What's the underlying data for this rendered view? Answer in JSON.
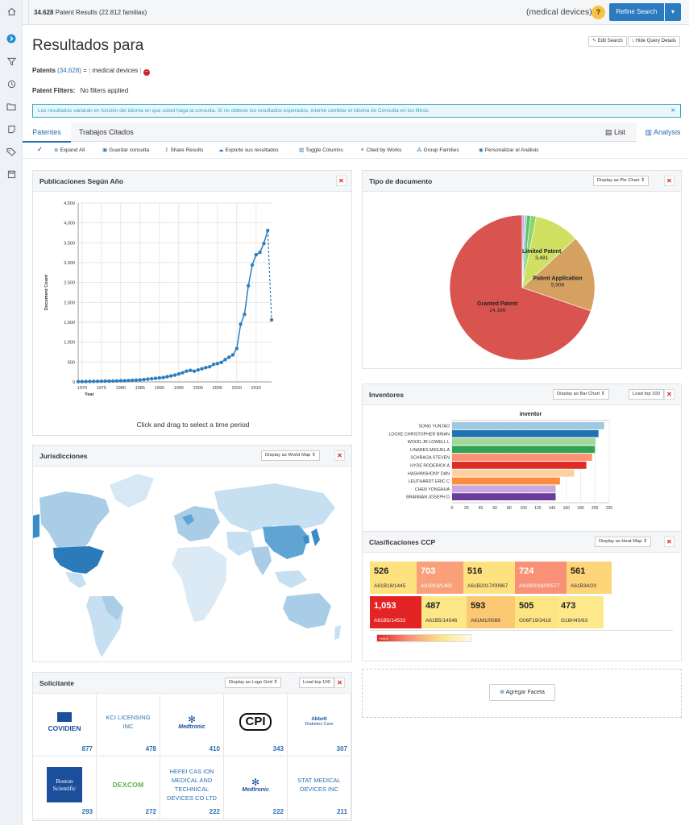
{
  "topbar": {
    "results_count": "34.628",
    "results_label": "Patent Results",
    "families": "(22.812 familias)",
    "query": "(medical devices)",
    "help": "?",
    "refine": "Refine Search",
    "refine_caret": "▾"
  },
  "header": {
    "title": "Resultados para",
    "edit": "Edit Search",
    "hide": "Hide Query Details",
    "patents_label": "Patents",
    "patents_count": "(34,628)",
    "equals": "=",
    "query_term": "medical devices",
    "filters_label": "Patent Filters:",
    "filters_value": "No filters applied",
    "notice": "Los resultados variarán en función del idioma en que usted haga la consulta. Si no obtiene los resultados esperados, intente cambiar el Idioma de Consulta en los filtros."
  },
  "tabs": {
    "patentes": "Patentes",
    "citados": "Trabajos Citados",
    "list": "List",
    "analysis": "Analysis"
  },
  "toolbar": [
    "Expand All",
    "Guardar consulta",
    "Share Results",
    "Exporte sus resultados",
    "Toggle Columns",
    "Cited by Works",
    "Group Families",
    "Personalizar el Análisis"
  ],
  "panels": {
    "years": {
      "title": "Publicaciones Según Año",
      "caption": "Click and drag to select a time period"
    },
    "tipo": {
      "title": "Tipo de documento",
      "display": "Display as Pie Chart"
    },
    "inventores": {
      "title": "Inventores",
      "display": "Display as Bar Chart",
      "load": "Load top 100"
    },
    "juris": {
      "title": "Jurisdicciones",
      "display": "Display as World Map"
    },
    "clasif": {
      "title": "Clasificaciones CCP",
      "display": "Display as Heat Map"
    },
    "solicitante": {
      "title": "Solicitante",
      "display": "Display as Logo Grid",
      "load": "Load top 100"
    },
    "agregar": "Agregar Faceta"
  },
  "chart_data": [
    {
      "type": "line",
      "xlabel": "Year",
      "ylabel": "Document Count",
      "ylim": [
        0,
        4500
      ],
      "x": [
        1969,
        1970,
        1971,
        1972,
        1973,
        1974,
        1975,
        1976,
        1977,
        1978,
        1979,
        1980,
        1981,
        1982,
        1983,
        1984,
        1985,
        1986,
        1987,
        1988,
        1989,
        1990,
        1991,
        1992,
        1993,
        1994,
        1995,
        1996,
        1997,
        1998,
        1999,
        2000,
        2001,
        2002,
        2003,
        2004,
        2005,
        2006,
        2007,
        2008,
        2009,
        2010,
        2011,
        2012,
        2013,
        2014,
        2015,
        2016,
        2017,
        2018,
        2019
      ],
      "values": [
        5,
        6,
        8,
        10,
        12,
        14,
        16,
        18,
        20,
        22,
        25,
        28,
        30,
        35,
        40,
        45,
        50,
        60,
        70,
        80,
        90,
        100,
        110,
        130,
        150,
        170,
        200,
        230,
        270,
        290,
        270,
        300,
        330,
        360,
        380,
        440,
        460,
        490,
        560,
        620,
        680,
        840,
        1450,
        1700,
        2420,
        2940,
        3200,
        3260,
        3480,
        3810,
        4210
      ],
      "projected_last": 1560,
      "xticks": [
        1970,
        1975,
        1980,
        1985,
        1990,
        1995,
        2000,
        2005,
        2010,
        2015
      ],
      "yticks": [
        "0",
        "500",
        "1,000",
        "1,500",
        "2,000",
        "2,500",
        "3,000",
        "3,500",
        "4,000",
        "4,500"
      ]
    },
    {
      "type": "pie",
      "slices": [
        {
          "label": "Granted Patent",
          "value": 24166,
          "color": "#d9534f"
        },
        {
          "label": "Patent Application",
          "value": 5908,
          "color": "#d4a160"
        },
        {
          "label": "Limited Patent",
          "value": 3481,
          "color": "#cfe063"
        },
        {
          "label": "",
          "value": 420,
          "color": "#8bd36b"
        },
        {
          "label": "",
          "value": 310,
          "color": "#5fbf6a"
        },
        {
          "label": "",
          "value": 180,
          "color": "#9fc5e8"
        },
        {
          "label": "",
          "value": 160,
          "color": "#c7a6e0"
        }
      ],
      "value_labels": [
        "24,166",
        "5,908",
        "3,481"
      ]
    },
    {
      "type": "bar",
      "title": "inventor",
      "orientation": "horizontal",
      "categories": [
        "SONG YUNTAO",
        "LOCKE CHRISTOPHER BRIAN",
        "WOOD JR LOWELL L",
        "LINARES MIGUEL A",
        "SCHRAGA STEVEN",
        "HYDE RODERICK A",
        "HASHIMSHONY DAN",
        "LEUTHARDT ERIC C",
        "CHEN YONGHUA",
        "BRANNAN JOSEPH D"
      ],
      "values": [
        213,
        205,
        201,
        200,
        196,
        188,
        171,
        151,
        145,
        145
      ],
      "colors": [
        "#9ecae1",
        "#2171b5",
        "#a1d99b",
        "#31a354",
        "#fc9272",
        "#de2d26",
        "#fdd0a2",
        "#fd8d3c",
        "#c9a8dd",
        "#6a3d9a"
      ],
      "xlim": [
        0,
        220
      ],
      "xticks": [
        0,
        20,
        40,
        60,
        80,
        100,
        120,
        140,
        160,
        180,
        200,
        220
      ]
    },
    {
      "type": "heatmap",
      "cells": [
        {
          "value": "526",
          "code": "A61B18/1445",
          "color": "#fde27f"
        },
        {
          "value": "703",
          "code": "A61B18/1482",
          "color": "#f9a07a"
        },
        {
          "value": "516",
          "code": "A61B2017/00867",
          "color": "#fde27f"
        },
        {
          "value": "724",
          "code": "A61B2018/00577",
          "color": "#f99177"
        },
        {
          "value": "561",
          "code": "A61B34/20",
          "color": "#fdd477"
        },
        {
          "value": "1,053",
          "code": "A61B5/14532",
          "color": "#e32424"
        },
        {
          "value": "487",
          "code": "A61B5/14546",
          "color": "#fde888"
        },
        {
          "value": "593",
          "code": "A61M1/0088",
          "color": "#fdc873"
        },
        {
          "value": "505",
          "code": "G06F19/3418",
          "color": "#fde583"
        },
        {
          "value": "473",
          "code": "G16H40/63",
          "color": "#fde98c"
        }
      ],
      "legend": "+MILS"
    }
  ],
  "applicants": [
    {
      "name": "COVIDIEN",
      "count": "877",
      "kind": "logo-covidien"
    },
    {
      "name": "KCI LICENSING INC",
      "count": "478",
      "kind": "text"
    },
    {
      "name": "Medtronic",
      "count": "410",
      "kind": "logo-medtronic"
    },
    {
      "name": "CPI",
      "count": "343",
      "kind": "logo-cpi"
    },
    {
      "name": "Abbott",
      "sub": "Diabetes Care",
      "count": "307",
      "kind": "logo-abbott"
    },
    {
      "name": "Boston Scientific",
      "count": "293",
      "kind": "logo-boston"
    },
    {
      "name": "DEXCOM",
      "count": "272",
      "kind": "logo-dexcom"
    },
    {
      "name": "HEFEI CAS ION MEDICAL AND TECHNICAL DEVICES CO LTD",
      "count": "222",
      "kind": "text"
    },
    {
      "name": "Medtronic",
      "count": "222",
      "kind": "logo-medtronic"
    },
    {
      "name": "STAT MEDICAL DEVICES INC",
      "count": "211",
      "kind": "text"
    }
  ],
  "colors": {
    "accent": "#2a6fb2",
    "primary_btn": "#2a7bc0",
    "line": "#2f7ebc",
    "danger": "#d0232a"
  }
}
